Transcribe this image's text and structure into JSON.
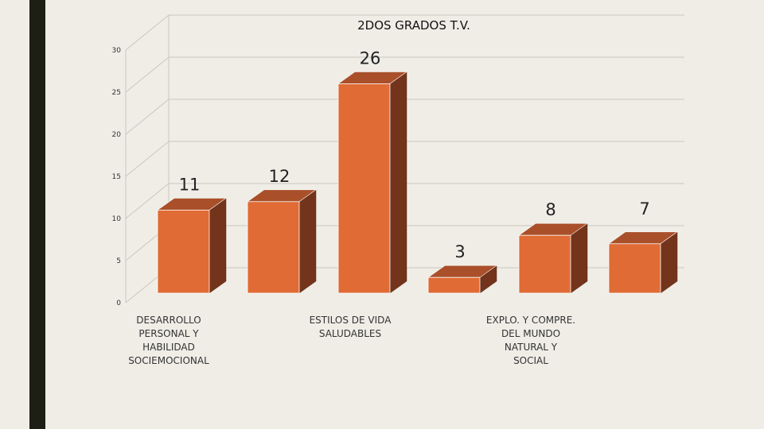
{
  "chart_data": {
    "type": "bar",
    "title": "2DOS GRADOS T.V.",
    "xlabel": "",
    "ylabel": "",
    "ylim": [
      0,
      30
    ],
    "yticks": [
      0,
      5,
      10,
      15,
      20,
      25,
      30
    ],
    "grid": true,
    "legend": "none",
    "three_d": true,
    "bar_front_color": "#e06b35",
    "bar_side_color": "#73341b",
    "bar_top_color": "#a9502a",
    "category_labels": [
      [
        "DESARROLLO",
        "PERSONAL Y",
        "HABILIDAD",
        "SOCIEMOCIONAL"
      ],
      [
        "ESTILOS DE VIDA",
        "SALUDABLES"
      ],
      [
        "EXPLO. Y COMPRE.",
        "DEL MUNDO",
        "NATURAL Y",
        "SOCIAL"
      ]
    ],
    "values": [
      11,
      12,
      26,
      3,
      8,
      7
    ],
    "data_labels": [
      "11",
      "12",
      "26",
      "3",
      "8",
      "7"
    ]
  }
}
